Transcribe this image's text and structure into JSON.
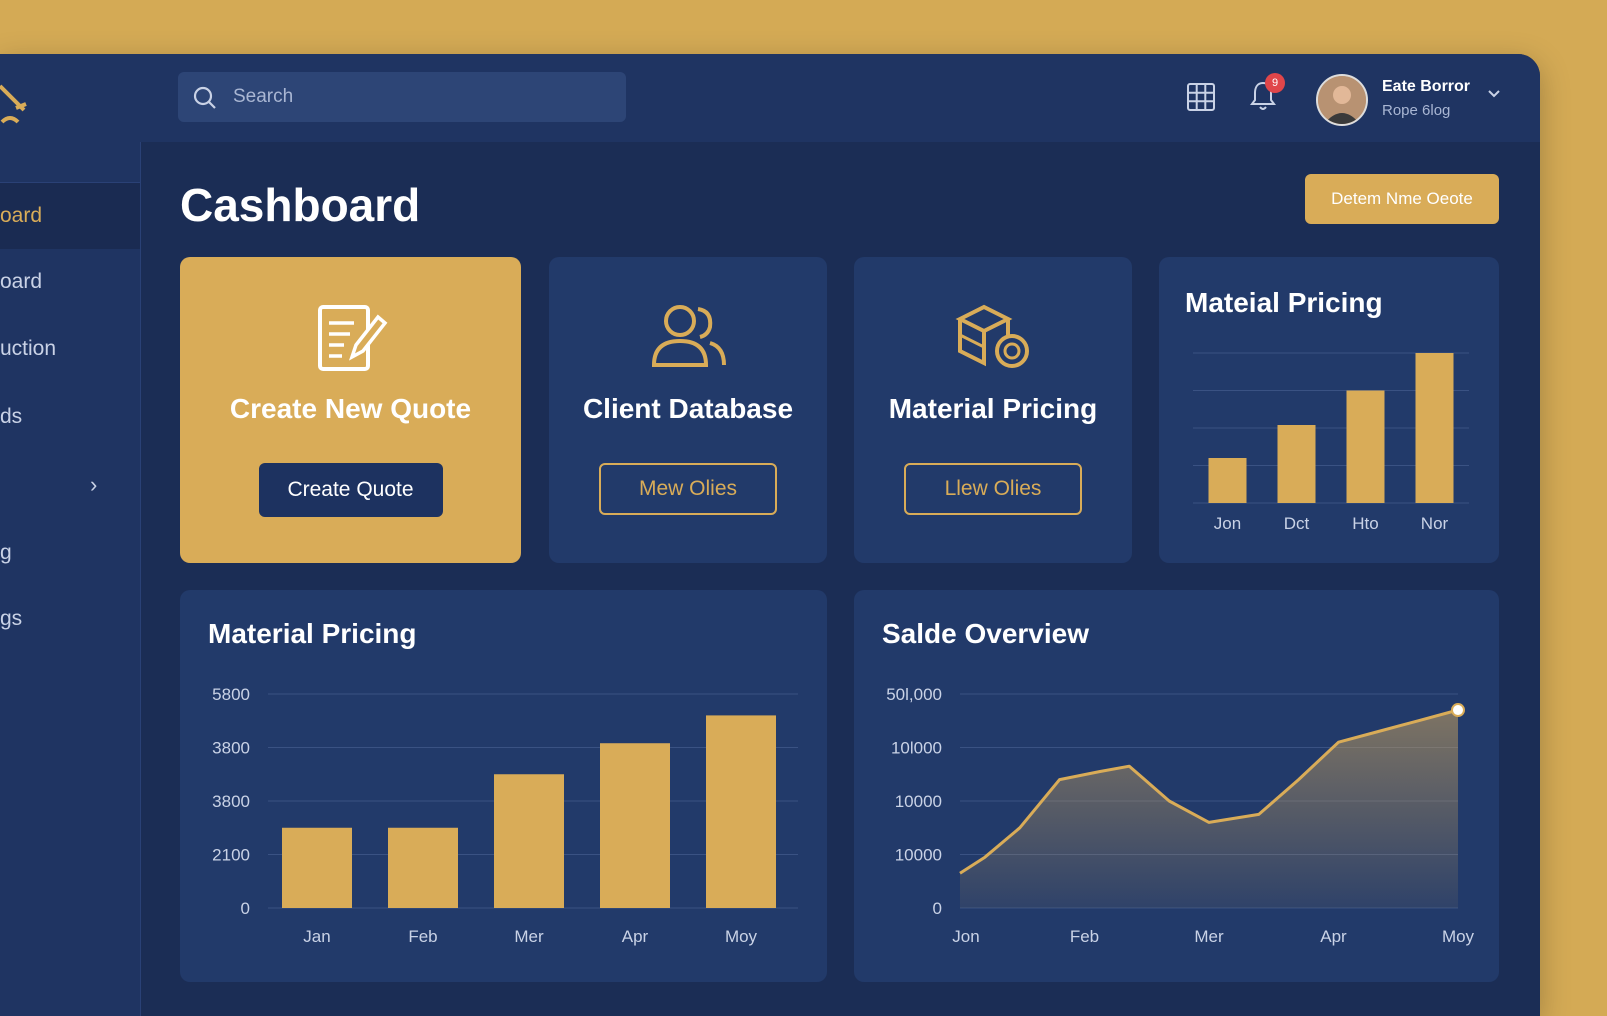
{
  "sidebar": {
    "items": [
      {
        "label": "oard",
        "active": true
      },
      {
        "label": "oard"
      },
      {
        "label": "uction"
      },
      {
        "label": "ds"
      },
      {
        "label": ""
      },
      {
        "label": "g"
      },
      {
        "label": "gs"
      }
    ]
  },
  "header": {
    "search_placeholder": "Search",
    "notification_count": "9",
    "user_name": "Eate Borror",
    "user_role": "Rope 6log"
  },
  "page": {
    "title": "Cashboard",
    "top_button": "Detem Nme Oeote"
  },
  "cards": [
    {
      "title": "Create New Quote",
      "button": "Create Quote",
      "icon": "quote-edit-icon"
    },
    {
      "title": "Client Database",
      "button": "Mew Olies",
      "icon": "users-icon"
    },
    {
      "title": "Material Pricing",
      "button": "Llew Olies",
      "icon": "materials-icon"
    }
  ],
  "colors": {
    "gold": "#d9ac58",
    "navy": "#1b2d55",
    "card": "#223a6a"
  },
  "small_chart": {
    "title": "Mateial Pricing",
    "chart_data": {
      "type": "bar",
      "categories": [
        "Jon",
        "Dct",
        "Hto",
        "Nor"
      ],
      "values": [
        3,
        5.2,
        7.5,
        10
      ],
      "ylim": [
        0,
        10
      ],
      "grid": true
    }
  },
  "bar_panel": {
    "title": "Material Pricing",
    "chart_data": {
      "type": "bar",
      "categories": [
        "Jan",
        "Feb",
        "Mer",
        "Apr",
        "Moy"
      ],
      "values": [
        1500,
        1500,
        2500,
        3080,
        3600
      ],
      "ytick_labels": [
        "0",
        "2100",
        "3800",
        "3800",
        "5800"
      ],
      "ylim": [
        0,
        4000
      ],
      "grid": true
    }
  },
  "line_panel": {
    "title": "Salde Overview",
    "chart_data": {
      "type": "area",
      "x_labels": [
        "Jon",
        "Feb",
        "Mer",
        "Apr",
        "Moy"
      ],
      "x": [
        0,
        0.25,
        0.5,
        0.75,
        1
      ],
      "ytick_labels": [
        "0",
        "10000",
        "10000",
        "10l000",
        "50l,000"
      ],
      "ylim": [
        0,
        4
      ],
      "series": [
        {
          "points": [
            [
              0,
              0.65
            ],
            [
              0.05,
              0.95
            ],
            [
              0.12,
              1.5
            ],
            [
              0.2,
              2.4
            ],
            [
              0.28,
              2.55
            ],
            [
              0.34,
              2.65
            ],
            [
              0.42,
              2.0
            ],
            [
              0.5,
              1.6
            ],
            [
              0.6,
              1.75
            ],
            [
              0.68,
              2.4
            ],
            [
              0.76,
              3.1
            ],
            [
              0.84,
              3.3
            ],
            [
              0.92,
              3.5
            ],
            [
              1.0,
              3.7
            ]
          ]
        }
      ]
    }
  }
}
